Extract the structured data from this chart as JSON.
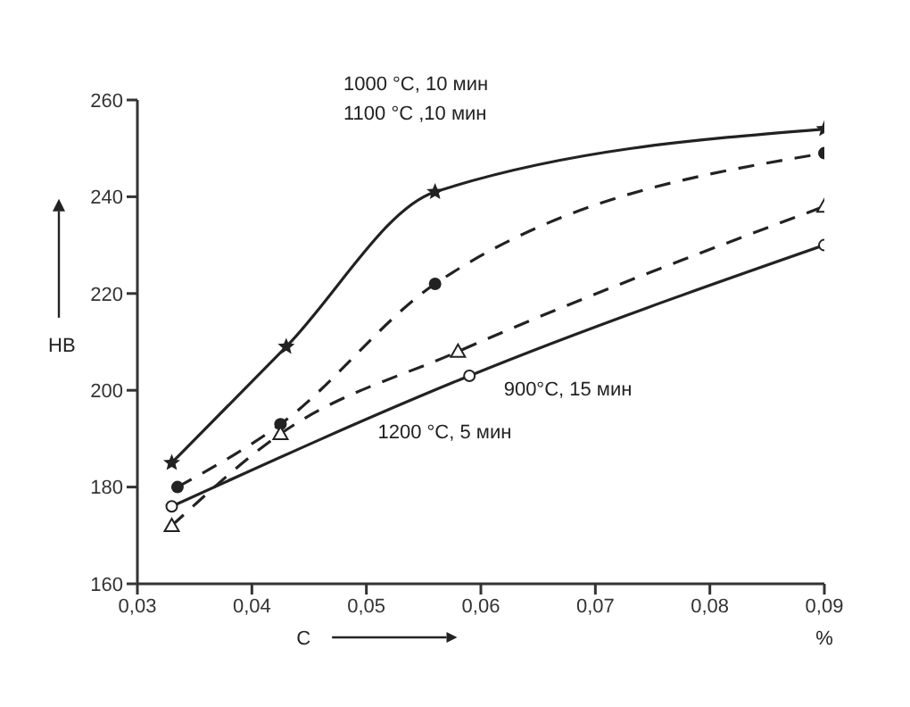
{
  "chart_data": {
    "type": "line",
    "xlabel": "C",
    "ylabel": "HB",
    "annotations": [
      "1000 °C, 10 мин",
      "1100 °C ,10 мин",
      "900°C, 15 мин",
      "1200 °C, 5 мин",
      "%"
    ],
    "series": [
      {
        "color": "#222222",
        "line_style": "solid",
        "marker": "star",
        "x": [
          0.033,
          0.043,
          0.056,
          0.09
        ],
        "values": [
          185,
          209,
          241,
          254
        ]
      },
      {
        "color": "#222222",
        "line_style": "dashed",
        "marker": "circle",
        "x": [
          0.0335,
          0.0425,
          0.056,
          0.09
        ],
        "values": [
          180,
          193,
          222,
          249
        ]
      },
      {
        "color": "#222222",
        "line_style": "dashed",
        "marker": "triangle",
        "x": [
          0.033,
          0.0425,
          0.058,
          0.09
        ],
        "values": [
          172,
          191,
          208,
          238
        ]
      },
      {
        "color": "#222222",
        "line_style": "solid",
        "marker": "open_circle",
        "x": [
          0.033,
          0.059,
          0.09
        ],
        "values": [
          176,
          203,
          230
        ]
      }
    ],
    "xlim": [
      0.03,
      0.09
    ],
    "xticks": [
      {
        "value": 0.03,
        "label": "0,03"
      },
      {
        "value": 0.04,
        "label": "0,04"
      },
      {
        "value": 0.05,
        "label": "0,05"
      },
      {
        "value": 0.06,
        "label": "0,06"
      },
      {
        "value": 0.07,
        "label": "0,07"
      },
      {
        "value": 0.08,
        "label": "0,08"
      },
      {
        "value": 0.09,
        "label": "0,09"
      }
    ],
    "ylim": [
      160,
      260
    ],
    "yticks": [
      160,
      180,
      200,
      220,
      240,
      260
    ]
  }
}
